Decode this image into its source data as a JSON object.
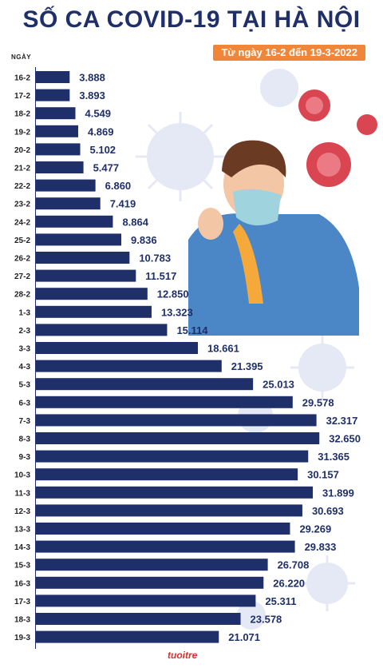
{
  "header": {
    "title": "SỐ CA COVID-19 TẠI HÀ NỘI",
    "subtitle": "Từ ngày 16-2 đến 19-3-2022",
    "y_axis_label": "NGÀY"
  },
  "logo": {
    "text": "tuoitre"
  },
  "colors": {
    "bar": "#1f2f6a",
    "accent": "#f0863a",
    "virus_red": "#d94550",
    "virus_blue": "#dfe5f3"
  },
  "chart_data": {
    "type": "bar",
    "orientation": "horizontal",
    "title": "SỐ CA COVID-19 TẠI HÀ NỘI",
    "subtitle": "Từ ngày 16-2 đến 19-3-2022",
    "ylabel": "NGÀY",
    "xlim": [
      0,
      35000
    ],
    "grid": false,
    "categories": [
      "16-2",
      "17-2",
      "18-2",
      "19-2",
      "20-2",
      "21-2",
      "22-2",
      "23-2",
      "24-2",
      "25-2",
      "26-2",
      "27-2",
      "28-2",
      "1-3",
      "2-3",
      "3-3",
      "4-3",
      "5-3",
      "6-3",
      "7-3",
      "8-3",
      "9-3",
      "10-3",
      "11-3",
      "12-3",
      "13-3",
      "14-3",
      "15-3",
      "16-3",
      "17-3",
      "18-3",
      "19-3"
    ],
    "values": [
      3888,
      3893,
      4549,
      4869,
      5102,
      5477,
      6860,
      7419,
      8864,
      9836,
      10783,
      11517,
      12850,
      13323,
      15114,
      18661,
      21395,
      25013,
      29578,
      32317,
      32650,
      31365,
      30157,
      31899,
      30693,
      29269,
      29833,
      26708,
      26220,
      25311,
      23578,
      21071
    ],
    "value_labels": [
      "3.888",
      "3.893",
      "4.549",
      "4.869",
      "5.102",
      "5.477",
      "6.860",
      "7.419",
      "8.864",
      "9.836",
      "10.783",
      "11.517",
      "12.850",
      "13.323",
      "15.114",
      "18.661",
      "21.395",
      "25.013",
      "29.578",
      "32.317",
      "32.650",
      "31.365",
      "30.157",
      "31.899",
      "30.693",
      "29.269",
      "29.833",
      "26.708",
      "26.220",
      "25.311",
      "23.578",
      "21.071"
    ]
  }
}
